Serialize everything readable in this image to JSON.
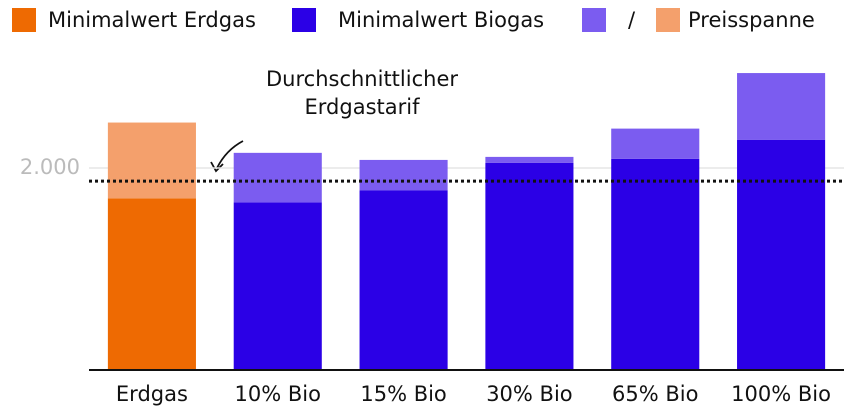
{
  "chart_data": {
    "type": "stacked_bar",
    "categories": [
      "Erdgas",
      "10% Bio",
      "15% Bio",
      "30% Bio",
      "65% Bio",
      "100% Bio"
    ],
    "series": [
      {
        "name": "Minimalwert Erdgas",
        "color": "#ee6a02",
        "values": [
          1700,
          null,
          null,
          null,
          null,
          null
        ]
      },
      {
        "name": "Minimalwert Biogas",
        "color": "#2b00e6",
        "values": [
          null,
          1660,
          1780,
          2050,
          2090,
          2280
        ]
      },
      {
        "name": "Preisspanne",
        "colors": [
          "#f4a06c",
          "#7b5cf0",
          "#7b5cf0",
          "#7b5cf0",
          "#7b5cf0",
          "#7b5cf0"
        ],
        "values": [
          750,
          490,
          300,
          60,
          300,
          660
        ]
      }
    ],
    "legend_separator": "/",
    "ylim": [
      0,
      3000
    ],
    "yticks": [
      {
        "value": 2000,
        "label": "2.000"
      }
    ],
    "grid": true,
    "reference_line": {
      "value": 1870,
      "lines": [
        "Durchschnittlicher",
        "Erdgastarif"
      ]
    }
  }
}
